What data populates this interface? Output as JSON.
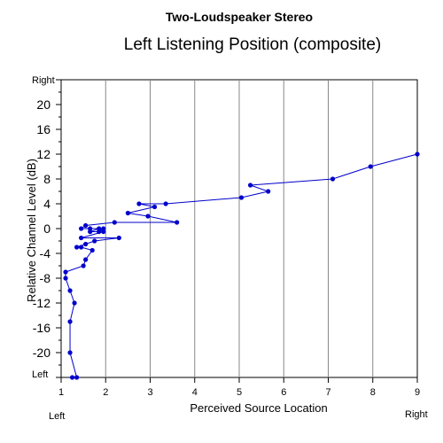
{
  "chart_data": {
    "type": "scatter",
    "title": "Two-Loudspeaker Stereo",
    "subtitle": "Left Listening Position (composite)",
    "xlabel": "Perceived Source Location",
    "ylabel": "Relative Channel Level (dB)",
    "x_left_word": "Left",
    "x_right_word": "Right",
    "y_top_word": "Right",
    "y_bottom_word": "Left",
    "xlim": [
      1,
      9
    ],
    "ylim": [
      -24,
      24
    ],
    "x_ticks": [
      "1",
      "2",
      "3",
      "4",
      "5",
      "6",
      "7",
      "8",
      "9"
    ],
    "y_ticks": [
      "-20",
      "-16",
      "-12",
      "-8",
      "-4",
      "0",
      "4",
      "8",
      "12",
      "16",
      "20"
    ],
    "grid": "vertical",
    "line_color": "#0000cc",
    "series": [
      {
        "points": [
          [
            9.0,
            12
          ],
          [
            7.95,
            10
          ],
          [
            7.1,
            8
          ],
          [
            5.25,
            7
          ],
          [
            5.65,
            6
          ],
          [
            5.05,
            5
          ],
          [
            3.35,
            4
          ],
          [
            2.75,
            4
          ],
          [
            3.1,
            3.5
          ],
          [
            2.5,
            2.5
          ],
          [
            2.95,
            2
          ],
          [
            3.6,
            1
          ],
          [
            2.2,
            1
          ],
          [
            1.55,
            0.5
          ],
          [
            1.45,
            0
          ],
          [
            1.65,
            0
          ],
          [
            1.95,
            0
          ],
          [
            1.85,
            -0.5
          ],
          [
            1.65,
            -0.5
          ],
          [
            1.85,
            0
          ],
          [
            1.95,
            -0.5
          ],
          [
            1.45,
            -1.5
          ],
          [
            2.3,
            -1.5
          ],
          [
            1.75,
            -2
          ],
          [
            1.55,
            -2.5
          ],
          [
            1.35,
            -3
          ],
          [
            1.45,
            -3
          ],
          [
            1.7,
            -3.5
          ],
          [
            1.55,
            -5
          ],
          [
            1.5,
            -6
          ],
          [
            1.1,
            -7
          ],
          [
            1.1,
            -8
          ],
          [
            1.2,
            -10
          ],
          [
            1.3,
            -12
          ],
          [
            1.2,
            -15
          ],
          [
            1.2,
            -20
          ],
          [
            1.35,
            -24
          ],
          [
            1.25,
            -24
          ]
        ]
      }
    ]
  }
}
